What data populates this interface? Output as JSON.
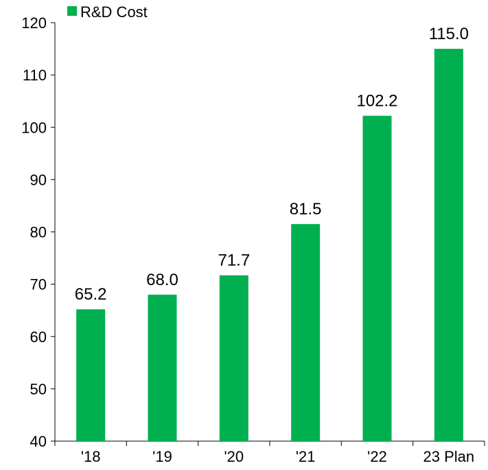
{
  "chart_data": {
    "type": "bar",
    "categories": [
      "'18",
      "'19",
      "'20",
      "'21",
      "'22",
      "23 Plan"
    ],
    "series": [
      {
        "name": "R&D Cost",
        "color": "#00b050",
        "values": [
          65.2,
          68.0,
          71.7,
          81.5,
          102.2,
          115.0
        ],
        "labels": [
          "65.2",
          "68.0",
          "71.7",
          "81.5",
          "102.2",
          "115.0"
        ]
      }
    ],
    "yticks": [
      "40",
      "50",
      "60",
      "70",
      "80",
      "90",
      "100",
      "110",
      "120"
    ],
    "ylim": [
      40,
      120
    ],
    "legend": "top-left",
    "grid": false
  }
}
